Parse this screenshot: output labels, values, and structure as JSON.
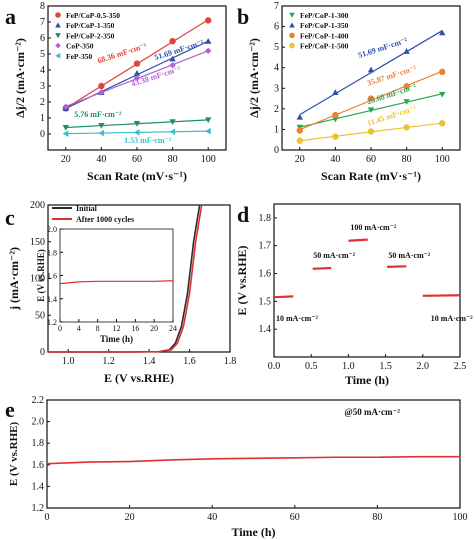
{
  "figure": {
    "panel_letters": [
      "a",
      "b",
      "c",
      "d",
      "e"
    ]
  },
  "chart_data": [
    {
      "panel": "a",
      "type": "scatter",
      "xlabel": "Scan Rate (mV·s⁻¹)",
      "ylabel": "Δj/2 (mA·cm⁻²)",
      "xlim": [
        10,
        110
      ],
      "ylim": [
        -1,
        8
      ],
      "xticks": [
        20,
        40,
        60,
        80,
        100
      ],
      "yticks": [
        0,
        1,
        2,
        3,
        4,
        5,
        6,
        7,
        8
      ],
      "legend_position": "top-left",
      "x": [
        20,
        40,
        60,
        80,
        100
      ],
      "series": [
        {
          "name": "FeP/CoP-0.5-350",
          "color": "#e0443a",
          "marker": "circle",
          "values": [
            1.6,
            3.0,
            4.4,
            5.8,
            7.1
          ]
        },
        {
          "name": "FeP/CoP-1-350",
          "color": "#2c4fae",
          "marker": "triangle-up",
          "values": [
            1.6,
            2.6,
            3.8,
            4.7,
            5.8
          ]
        },
        {
          "name": "FeP/CoP-2-350",
          "color": "#1a8f6e",
          "marker": "triangle-down",
          "values": [
            0.4,
            0.53,
            0.65,
            0.76,
            0.88
          ]
        },
        {
          "name": "CoP-350",
          "color": "#b064d0",
          "marker": "diamond",
          "values": [
            1.7,
            2.6,
            3.5,
            4.3,
            5.2
          ]
        },
        {
          "name": "FeP-350",
          "color": "#35c0cf",
          "marker": "triangle-left",
          "values": [
            0.02,
            0.06,
            0.1,
            0.14,
            0.18
          ]
        }
      ],
      "annotations": [
        {
          "text": "68.36 mF·cm⁻²",
          "color": "#e0443a",
          "at": [
            52,
            4.9
          ]
        },
        {
          "text": "51.69 mF·cm⁻²",
          "color": "#2c4fae",
          "at": [
            84,
            5.1
          ]
        },
        {
          "text": "43.38 mF·cm⁻²",
          "color": "#b064d0",
          "at": [
            71,
            3.45
          ]
        },
        {
          "text": "5.76 mF·cm⁻²",
          "color": "#1a8f6e",
          "at": [
            38,
            1.05
          ]
        },
        {
          "text": "1.53 mF·cm⁻²",
          "color": "#35c0cf",
          "at": [
            66,
            -0.55
          ]
        }
      ]
    },
    {
      "panel": "b",
      "type": "scatter",
      "xlabel": "Scan Rate (mV·s⁻¹)",
      "ylabel": "Δj/2 (mA·cm⁻²)",
      "xlim": [
        10,
        110
      ],
      "ylim": [
        0,
        7
      ],
      "xticks": [
        20,
        40,
        60,
        80,
        100
      ],
      "yticks": [
        0,
        1,
        2,
        3,
        4,
        5,
        6,
        7
      ],
      "legend_position": "top-left",
      "x": [
        20,
        40,
        60,
        80,
        100
      ],
      "series": [
        {
          "name": "FeP/CoP-1-300",
          "color": "#2ea64f",
          "marker": "triangle-down",
          "values": [
            1.1,
            1.5,
            1.95,
            2.35,
            2.7
          ]
        },
        {
          "name": "FeP/CoP-1-350",
          "color": "#2c4fae",
          "marker": "triangle-up",
          "values": [
            1.6,
            2.8,
            3.9,
            4.8,
            5.7
          ]
        },
        {
          "name": "FeP/CoP-1-400",
          "color": "#e8823a",
          "marker": "circle",
          "values": [
            0.95,
            1.7,
            2.5,
            3.1,
            3.8
          ]
        },
        {
          "name": "FeP/CoP-1-500",
          "color": "#efc32f",
          "marker": "circle",
          "values": [
            0.45,
            0.65,
            0.9,
            1.1,
            1.3
          ]
        }
      ],
      "annotations": [
        {
          "text": "51.69 mF·cm⁻²",
          "color": "#2c4fae",
          "at": [
            67,
            4.85
          ]
        },
        {
          "text": "35.87 mF·cm⁻²",
          "color": "#e8823a",
          "at": [
            72,
            3.5
          ]
        },
        {
          "text": "25.68 mF·cm⁻²",
          "color": "#2ea64f",
          "at": [
            72,
            2.6
          ]
        },
        {
          "text": "11.45 mF·cm⁻²",
          "color": "#efc32f",
          "at": [
            72,
            1.55
          ]
        }
      ]
    },
    {
      "panel": "c",
      "type": "line",
      "xlabel": "E (V vs.RHE)",
      "ylabel": "j (mA·cm⁻²)",
      "xlim": [
        0.9,
        1.8
      ],
      "ylim": [
        0,
        200
      ],
      "xticks": [
        1.0,
        1.2,
        1.4,
        1.6,
        1.8
      ],
      "yticks": [
        0,
        50,
        100,
        150,
        200
      ],
      "legend_position": "top-left",
      "series": [
        {
          "name": "Initial",
          "color": "#2b2b2b",
          "x": [
            0.9,
            1.3,
            1.45,
            1.5,
            1.53,
            1.56,
            1.59,
            1.62,
            1.65
          ],
          "y": [
            0,
            0,
            0.5,
            3,
            12,
            35,
            80,
            150,
            205
          ]
        },
        {
          "name": "After 1000 cycles",
          "color": "#e03131",
          "x": [
            0.9,
            1.3,
            1.45,
            1.51,
            1.54,
            1.57,
            1.6,
            1.63,
            1.66
          ],
          "y": [
            0,
            0,
            0.5,
            3,
            12,
            35,
            80,
            150,
            205
          ]
        }
      ],
      "inset": {
        "type": "line",
        "xlabel": "Time (h)",
        "ylabel": "E (V vs.RHE)",
        "xlim": [
          0,
          24
        ],
        "ylim": [
          1.2,
          2.0
        ],
        "xticks": [
          0,
          4,
          8,
          12,
          16,
          20,
          24
        ],
        "yticks": [
          1.2,
          1.4,
          1.6,
          1.8,
          2.0
        ],
        "series": [
          {
            "color": "#e03131",
            "x": [
              0,
              4,
              8,
              12,
              16,
              20,
              24
            ],
            "y": [
              1.53,
              1.545,
              1.55,
              1.55,
              1.55,
              1.55,
              1.555
            ]
          }
        ]
      }
    },
    {
      "panel": "d",
      "type": "line",
      "xlabel": "Time (h)",
      "ylabel": "E (V vs.RHE)",
      "xlim": [
        0,
        2.5
      ],
      "ylim": [
        1.3,
        1.85
      ],
      "xticks": [
        0.0,
        0.5,
        1.0,
        1.5,
        2.0,
        2.5
      ],
      "xtick_labels": [
        "0.0",
        "0.5",
        "1.0",
        "1.5",
        "2.0",
        "2.5"
      ],
      "yticks": [
        1.4,
        1.5,
        1.6,
        1.7,
        1.8
      ],
      "series": [
        {
          "color": "#e03131",
          "x": [
            0.0,
            0.26
          ],
          "y": [
            1.515,
            1.518
          ]
        },
        {
          "color": "#e03131",
          "x": [
            0.52,
            0.77
          ],
          "y": [
            1.617,
            1.62
          ]
        },
        {
          "color": "#e03131",
          "x": [
            1.0,
            1.26
          ],
          "y": [
            1.718,
            1.722
          ]
        },
        {
          "color": "#e03131",
          "x": [
            1.52,
            1.78
          ],
          "y": [
            1.624,
            1.626
          ]
        },
        {
          "color": "#e03131",
          "x": [
            2.0,
            2.5
          ],
          "y": [
            1.52,
            1.522
          ]
        }
      ],
      "annotations": [
        {
          "text": "10 mA·cm⁻²",
          "at": [
            0.0,
            1.43
          ]
        },
        {
          "text": "50 mA·cm⁻²",
          "at": [
            0.5,
            1.655
          ]
        },
        {
          "text": "100 mA·cm⁻²",
          "at": [
            1.0,
            1.757
          ]
        },
        {
          "text": "50 mA·cm⁻²",
          "at": [
            1.51,
            1.655
          ]
        },
        {
          "text": "10 mA·cm⁻²",
          "at": [
            2.08,
            1.43
          ]
        }
      ]
    },
    {
      "panel": "e",
      "type": "line",
      "xlabel": "Time (h)",
      "ylabel": "E (V vs.RHE)",
      "xlim": [
        0,
        100
      ],
      "ylim": [
        1.2,
        2.2
      ],
      "xticks": [
        0,
        20,
        40,
        60,
        80,
        100
      ],
      "yticks": [
        1.2,
        1.4,
        1.6,
        1.8,
        2.0,
        2.2
      ],
      "series": [
        {
          "color": "#e03131",
          "x": [
            0,
            10,
            20,
            30,
            40,
            50,
            60,
            70,
            80,
            90,
            100
          ],
          "y": [
            1.61,
            1.625,
            1.63,
            1.645,
            1.655,
            1.66,
            1.665,
            1.67,
            1.67,
            1.675,
            1.675
          ]
        }
      ],
      "annotations": [
        {
          "text": "@50 mA·cm⁻²",
          "at": [
            72,
            2.06
          ]
        }
      ]
    }
  ]
}
